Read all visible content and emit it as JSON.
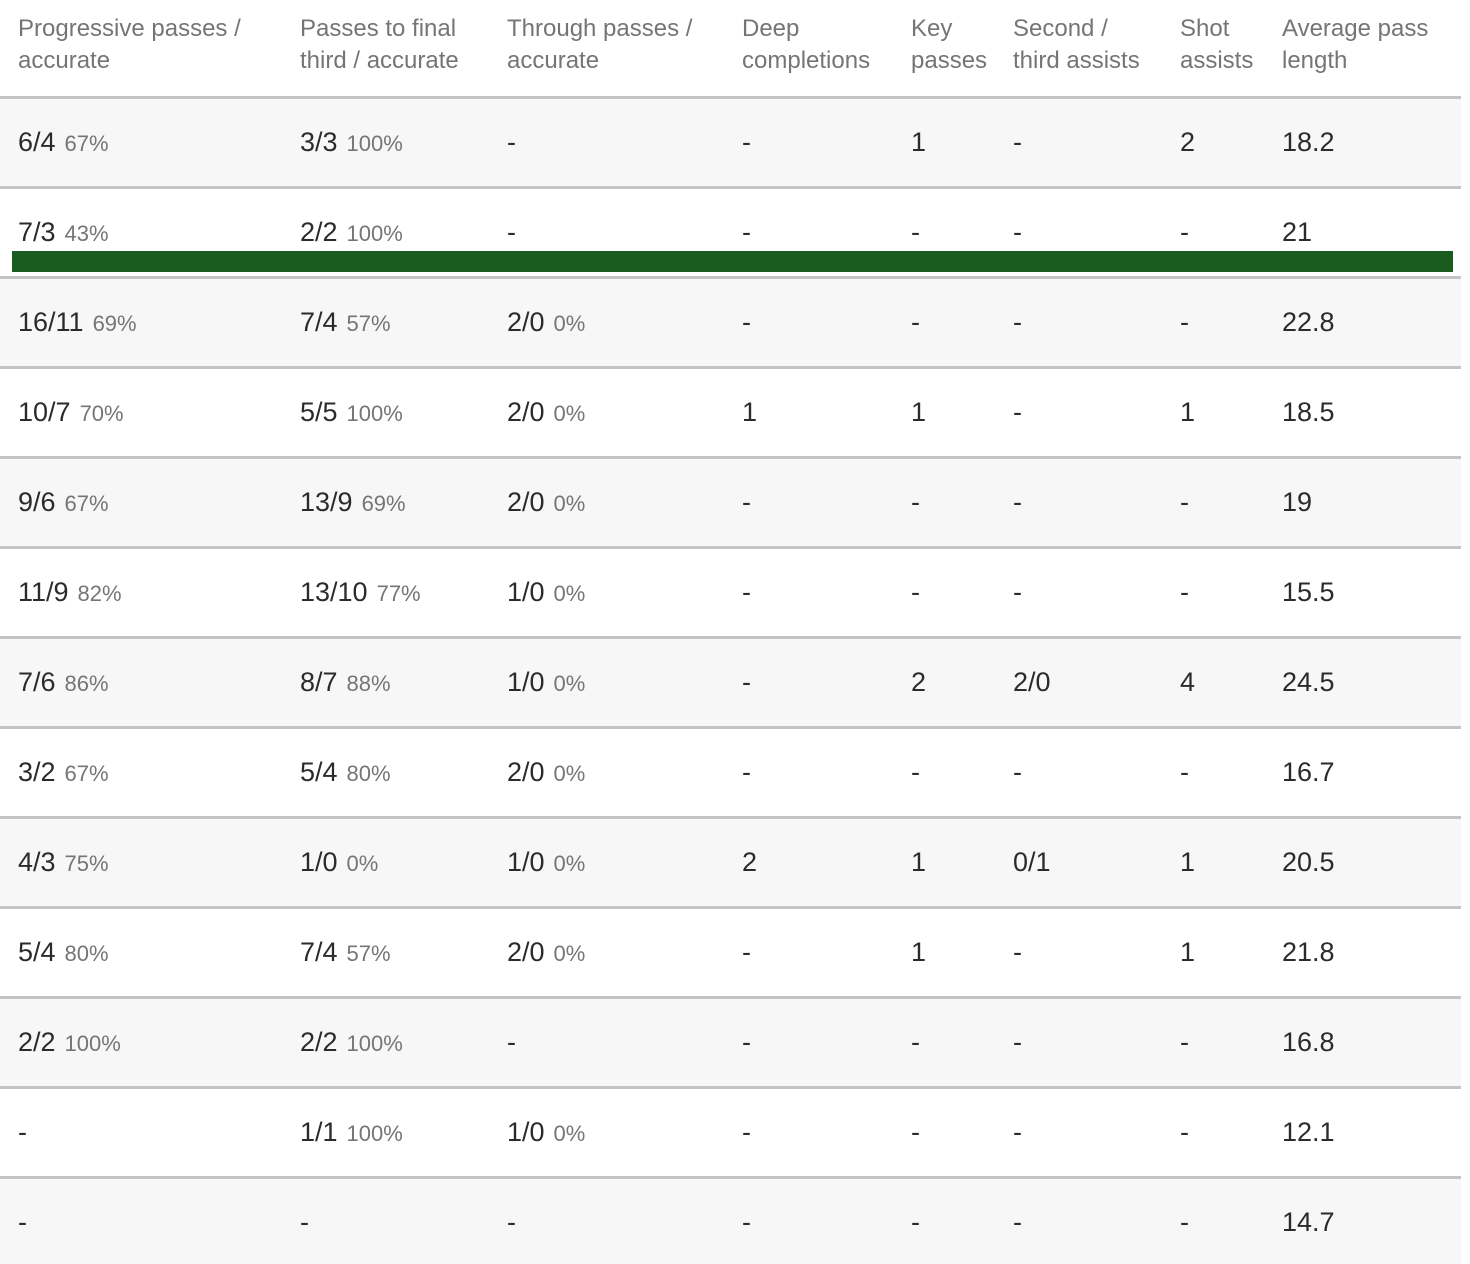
{
  "colors": {
    "highlight_green": "#1a5c20",
    "divider_gray": "#c4c4c4",
    "row_alt_gray": "#f7f7f7",
    "value_text": "#2b2b2b",
    "muted_text": "#757575"
  },
  "table": {
    "columns": [
      {
        "id": "progressive-passes",
        "line1": "Progressive passes /",
        "line2": "accurate"
      },
      {
        "id": "passes-final-third",
        "line1": "Passes to final",
        "line2": "third / accurate"
      },
      {
        "id": "through-passes",
        "line1": "Through passes /",
        "line2": "accurate"
      },
      {
        "id": "deep-completions",
        "line1": "Deep",
        "line2": "completions"
      },
      {
        "id": "key-passes",
        "line1": "Key",
        "line2": "passes"
      },
      {
        "id": "second-third-assists",
        "line1": "Second /",
        "line2": "third assists"
      },
      {
        "id": "shot-assists",
        "line1": "Shot",
        "line2": "assists"
      },
      {
        "id": "average-pass-length",
        "line1": "Average pass",
        "line2": "length"
      }
    ],
    "rows": [
      {
        "highlight": false,
        "cells": [
          [
            "6/4",
            "67%"
          ],
          [
            "3/3",
            "100%"
          ],
          [
            "-",
            ""
          ],
          [
            "-",
            ""
          ],
          [
            "1",
            ""
          ],
          [
            "-",
            ""
          ],
          [
            "2",
            ""
          ],
          [
            "18.2",
            ""
          ]
        ]
      },
      {
        "highlight": true,
        "cells": [
          [
            "7/3",
            "43%"
          ],
          [
            "2/2",
            "100%"
          ],
          [
            "-",
            ""
          ],
          [
            "-",
            ""
          ],
          [
            "-",
            ""
          ],
          [
            "-",
            ""
          ],
          [
            "-",
            ""
          ],
          [
            "21",
            ""
          ]
        ]
      },
      {
        "highlight": false,
        "cells": [
          [
            "16/11",
            "69%"
          ],
          [
            "7/4",
            "57%"
          ],
          [
            "2/0",
            "0%"
          ],
          [
            "-",
            ""
          ],
          [
            "-",
            ""
          ],
          [
            "-",
            ""
          ],
          [
            "-",
            ""
          ],
          [
            "22.8",
            ""
          ]
        ]
      },
      {
        "highlight": false,
        "cells": [
          [
            "10/7",
            "70%"
          ],
          [
            "5/5",
            "100%"
          ],
          [
            "2/0",
            "0%"
          ],
          [
            "1",
            ""
          ],
          [
            "1",
            ""
          ],
          [
            "-",
            ""
          ],
          [
            "1",
            ""
          ],
          [
            "18.5",
            ""
          ]
        ]
      },
      {
        "highlight": false,
        "cells": [
          [
            "9/6",
            "67%"
          ],
          [
            "13/9",
            "69%"
          ],
          [
            "2/0",
            "0%"
          ],
          [
            "-",
            ""
          ],
          [
            "-",
            ""
          ],
          [
            "-",
            ""
          ],
          [
            "-",
            ""
          ],
          [
            "19",
            ""
          ]
        ]
      },
      {
        "highlight": false,
        "cells": [
          [
            "11/9",
            "82%"
          ],
          [
            "13/10",
            "77%"
          ],
          [
            "1/0",
            "0%"
          ],
          [
            "-",
            ""
          ],
          [
            "-",
            ""
          ],
          [
            "-",
            ""
          ],
          [
            "-",
            ""
          ],
          [
            "15.5",
            ""
          ]
        ]
      },
      {
        "highlight": false,
        "cells": [
          [
            "7/6",
            "86%"
          ],
          [
            "8/7",
            "88%"
          ],
          [
            "1/0",
            "0%"
          ],
          [
            "-",
            ""
          ],
          [
            "2",
            ""
          ],
          [
            "2/0",
            ""
          ],
          [
            "4",
            ""
          ],
          [
            "24.5",
            ""
          ]
        ]
      },
      {
        "highlight": false,
        "cells": [
          [
            "3/2",
            "67%"
          ],
          [
            "5/4",
            "80%"
          ],
          [
            "2/0",
            "0%"
          ],
          [
            "-",
            ""
          ],
          [
            "-",
            ""
          ],
          [
            "-",
            ""
          ],
          [
            "-",
            ""
          ],
          [
            "16.7",
            ""
          ]
        ]
      },
      {
        "highlight": false,
        "cells": [
          [
            "4/3",
            "75%"
          ],
          [
            "1/0",
            "0%"
          ],
          [
            "1/0",
            "0%"
          ],
          [
            "2",
            ""
          ],
          [
            "1",
            ""
          ],
          [
            "0/1",
            ""
          ],
          [
            "1",
            ""
          ],
          [
            "20.5",
            ""
          ]
        ]
      },
      {
        "highlight": false,
        "cells": [
          [
            "5/4",
            "80%"
          ],
          [
            "7/4",
            "57%"
          ],
          [
            "2/0",
            "0%"
          ],
          [
            "-",
            ""
          ],
          [
            "1",
            ""
          ],
          [
            "-",
            ""
          ],
          [
            "1",
            ""
          ],
          [
            "21.8",
            ""
          ]
        ]
      },
      {
        "highlight": false,
        "cells": [
          [
            "2/2",
            "100%"
          ],
          [
            "2/2",
            "100%"
          ],
          [
            "-",
            ""
          ],
          [
            "-",
            ""
          ],
          [
            "-",
            ""
          ],
          [
            "-",
            ""
          ],
          [
            "-",
            ""
          ],
          [
            "16.8",
            ""
          ]
        ]
      },
      {
        "highlight": false,
        "cells": [
          [
            "-",
            ""
          ],
          [
            "1/1",
            "100%"
          ],
          [
            "1/0",
            "0%"
          ],
          [
            "-",
            ""
          ],
          [
            "-",
            ""
          ],
          [
            "-",
            ""
          ],
          [
            "-",
            ""
          ],
          [
            "12.1",
            ""
          ]
        ]
      },
      {
        "highlight": false,
        "cells": [
          [
            "-",
            ""
          ],
          [
            "-",
            ""
          ],
          [
            "-",
            ""
          ],
          [
            "-",
            ""
          ],
          [
            "-",
            ""
          ],
          [
            "-",
            ""
          ],
          [
            "-",
            ""
          ],
          [
            "14.7",
            ""
          ]
        ]
      }
    ]
  }
}
